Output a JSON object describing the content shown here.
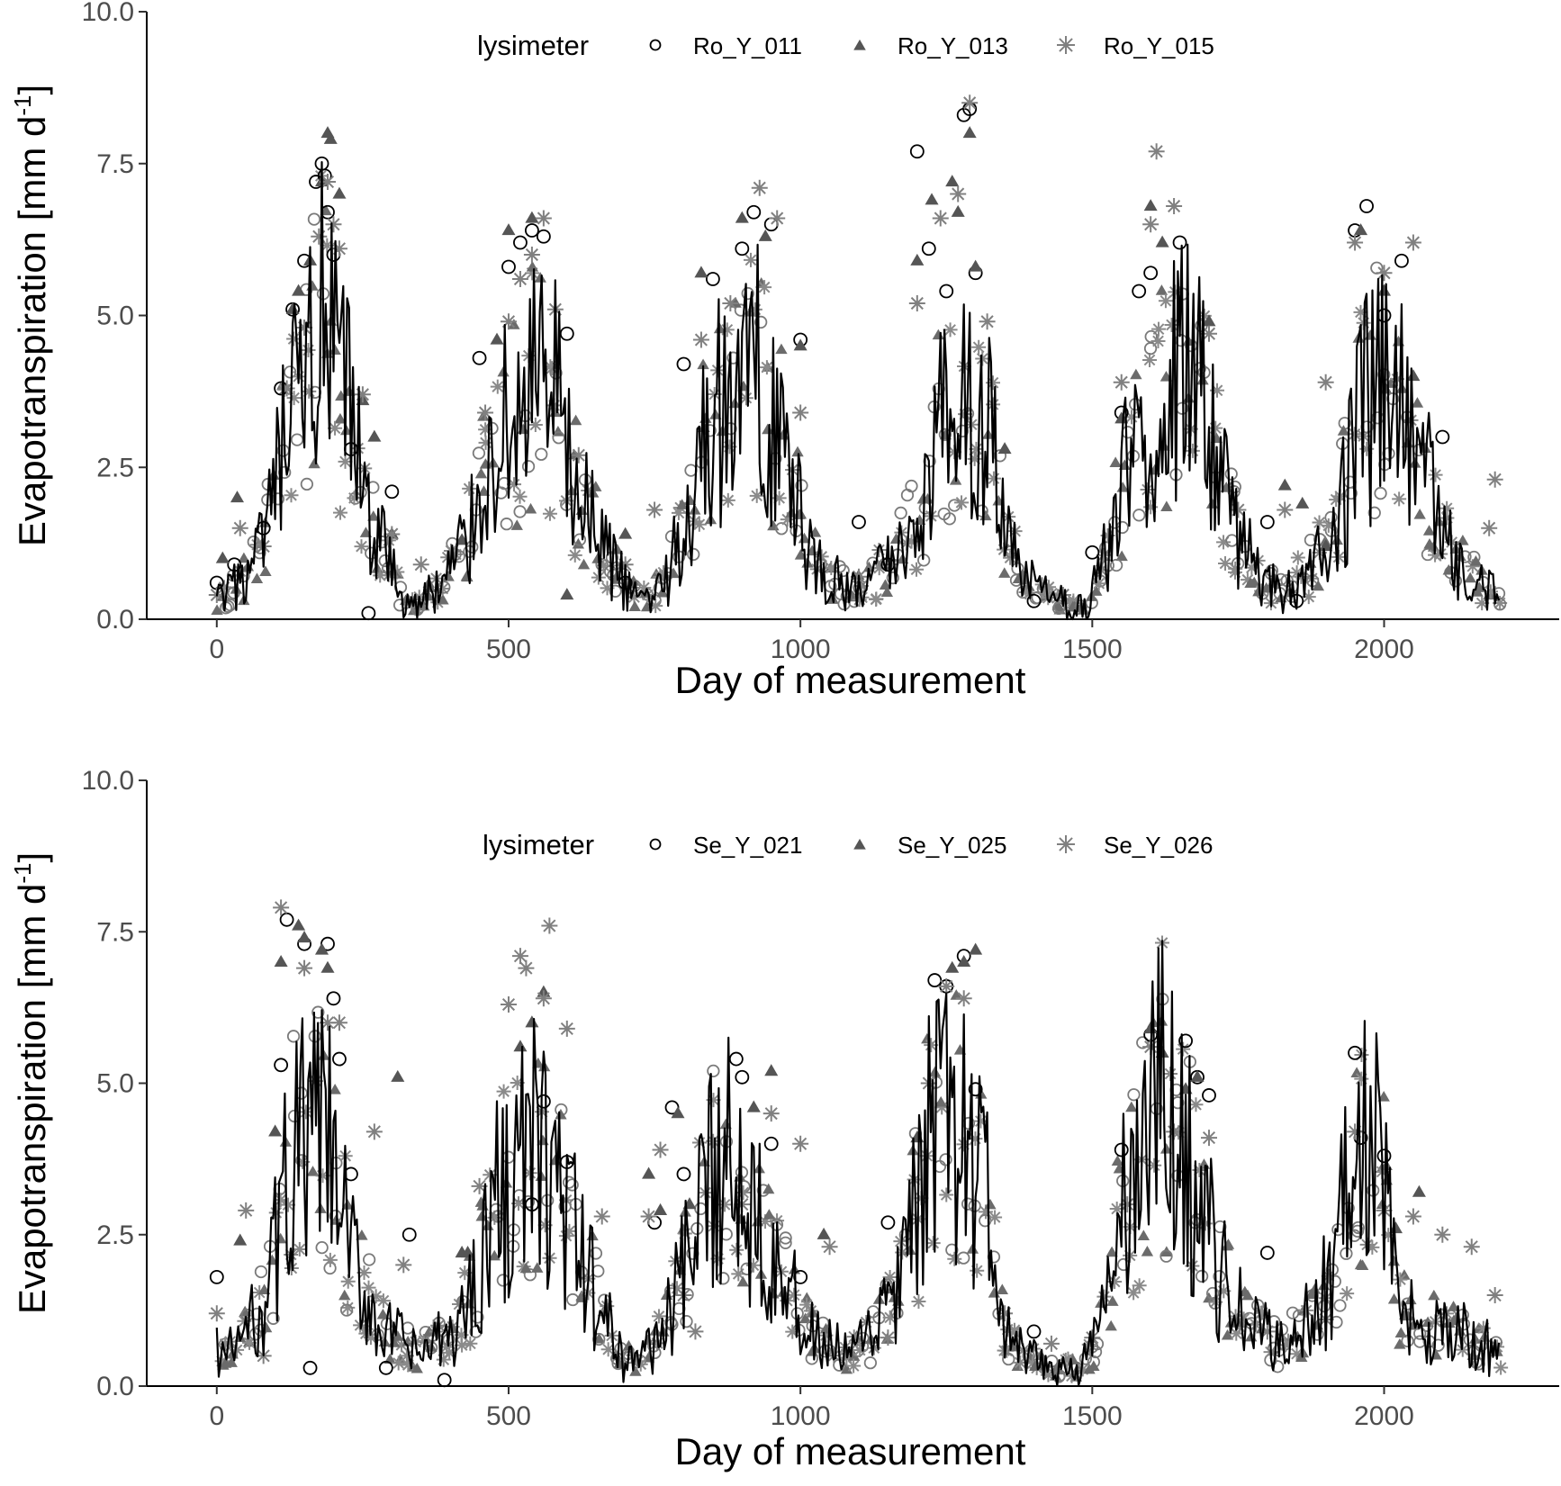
{
  "chart_data": [
    {
      "type": "scatter",
      "panel": "top",
      "xlabel": "Day of measurement",
      "ylabel": "Evapotranspiration [mm d",
      "ylabel_superscript": "-1",
      "ylabel_suffix": "]",
      "xlim": [
        -120,
        2300
      ],
      "ylim": [
        0,
        10
      ],
      "x_ticks": [
        0,
        500,
        1000,
        1500,
        2000
      ],
      "y_ticks": [
        0,
        2.5,
        5,
        7.5,
        10
      ],
      "x_tick_labels": [
        "0",
        "500",
        "1000",
        "1500",
        "2000"
      ],
      "y_tick_labels": [
        "0.0",
        "2.5",
        "5.0",
        "7.5",
        "10.0"
      ],
      "grid": false,
      "legend": {
        "placement": "top-center",
        "title": "lysimeter",
        "entries": [
          {
            "label": "Ro_Y_011",
            "marker": "circle-open",
            "color": "#000000"
          },
          {
            "label": "Ro_Y_013",
            "marker": "triangle",
            "color": "#555555"
          },
          {
            "label": "Ro_Y_015",
            "marker": "asterisk",
            "color": "#808080"
          }
        ]
      },
      "series": [
        {
          "name": "Ro_Y_011",
          "marker": "circle-open",
          "color": "#000000",
          "x": [
            0,
            30,
            80,
            110,
            130,
            150,
            170,
            180,
            185,
            190,
            200,
            230,
            260,
            300,
            450,
            500,
            520,
            540,
            560,
            600,
            700,
            800,
            850,
            900,
            920,
            950,
            1000,
            1100,
            1150,
            1200,
            1220,
            1250,
            1280,
            1290,
            1300,
            1400,
            1500,
            1550,
            1580,
            1600,
            1650,
            1800,
            1850,
            1950,
            1970,
            2000,
            2030,
            2100
          ],
          "y": [
            0.6,
            0.9,
            1.5,
            3.8,
            5.1,
            5.9,
            7.2,
            7.5,
            7.3,
            6.7,
            6.0,
            2.8,
            0.1,
            2.1,
            4.3,
            5.8,
            6.2,
            6.4,
            6.3,
            4.7,
            0.6,
            4.2,
            5.6,
            6.1,
            6.7,
            6.5,
            4.6,
            1.6,
            0.9,
            7.7,
            6.1,
            5.4,
            8.3,
            8.4,
            5.7,
            0.3,
            1.1,
            3.4,
            5.4,
            5.7,
            6.2,
            1.6,
            0.3,
            6.4,
            6.8,
            5.0,
            5.9,
            3.0
          ]
        },
        {
          "name": "Ro_Y_013",
          "marker": "triangle",
          "color": "#555555",
          "x": [
            10,
            35,
            130,
            140,
            160,
            180,
            190,
            195,
            210,
            250,
            270,
            300,
            420,
            480,
            500,
            540,
            600,
            700,
            830,
            900,
            940,
            1000,
            1200,
            1225,
            1260,
            1270,
            1290,
            1300,
            1350,
            1550,
            1600,
            1620,
            1700,
            1830,
            1860,
            1900,
            1960,
            2000,
            2050
          ],
          "y": [
            1.0,
            2.0,
            5.1,
            5.4,
            5.9,
            7.2,
            8.0,
            7.9,
            7.0,
            3.6,
            3.0,
            1.4,
            1.3,
            4.6,
            6.4,
            6.6,
            0.4,
            1.4,
            5.7,
            6.6,
            6.3,
            4.5,
            5.9,
            6.9,
            7.2,
            6.7,
            8.0,
            5.8,
            2.8,
            3.3,
            6.8,
            6.2,
            4.9,
            2.2,
            1.9,
            1.2,
            6.4,
            5.4,
            4.0
          ]
        },
        {
          "name": "Ro_Y_015",
          "marker": "asterisk",
          "color": "#808080",
          "x": [
            0,
            40,
            80,
            120,
            150,
            175,
            190,
            200,
            210,
            250,
            300,
            350,
            460,
            500,
            520,
            540,
            560,
            580,
            620,
            700,
            750,
            830,
            880,
            930,
            960,
            1000,
            1100,
            1200,
            1240,
            1270,
            1290,
            1320,
            1450,
            1550,
            1600,
            1610,
            1640,
            1700,
            1750,
            1830,
            1900,
            1950,
            2000,
            2050,
            2180,
            2190
          ],
          "y": [
            0.4,
            1.5,
            1.2,
            3.8,
            4.8,
            6.3,
            7.2,
            6.5,
            6.1,
            3.7,
            1.4,
            0.9,
            3.4,
            4.9,
            5.6,
            6.0,
            6.6,
            5.1,
            2.7,
            0.9,
            1.8,
            4.6,
            5.2,
            7.1,
            6.6,
            3.4,
            0.7,
            5.2,
            6.6,
            7.0,
            8.5,
            4.9,
            0.4,
            3.9,
            6.5,
            7.7,
            6.8,
            4.7,
            1.8,
            1.8,
            3.9,
            6.2,
            5.7,
            6.2,
            1.5,
            2.3
          ]
        }
      ],
      "line": {
        "name": "",
        "color": "#000000",
        "x": [
          0,
          20,
          40,
          60,
          80,
          100,
          120,
          140,
          160,
          180,
          200,
          220,
          240,
          260,
          280,
          300,
          320,
          340,
          360,
          380,
          400,
          420,
          440,
          460,
          480,
          500,
          520,
          540,
          560,
          580,
          600,
          620,
          640,
          660,
          680,
          700,
          720,
          740,
          760,
          780,
          800,
          820,
          840,
          860,
          880,
          900,
          920,
          940,
          960,
          980,
          1000,
          1020,
          1040,
          1060,
          1080,
          1100,
          1120,
          1140,
          1160,
          1180,
          1200,
          1220,
          1240,
          1260,
          1280,
          1300,
          1320,
          1340,
          1360,
          1380,
          1400,
          1420,
          1440,
          1460,
          1480,
          1500,
          1520,
          1540,
          1560,
          1580,
          1600,
          1620,
          1640,
          1660,
          1680,
          1700,
          1720,
          1740,
          1760,
          1780,
          1800,
          1820,
          1840,
          1860,
          1880,
          1900,
          1920,
          1940,
          1960,
          1980,
          2000,
          2020,
          2040,
          2060,
          2080,
          2100,
          2120,
          2140,
          2160,
          2180,
          2200
        ],
        "y": [
          0.3,
          0.4,
          0.6,
          0.8,
          1.2,
          2.0,
          3.0,
          3.4,
          4.3,
          4.8,
          4.0,
          3.8,
          2.6,
          1.7,
          1.3,
          0.8,
          0.3,
          0.2,
          0.4,
          0.5,
          0.8,
          1.2,
          1.6,
          2.4,
          2.9,
          3.2,
          3.5,
          3.9,
          3.7,
          3.6,
          2.5,
          2.0,
          1.6,
          1.2,
          0.9,
          0.5,
          0.4,
          0.3,
          0.6,
          0.9,
          1.5,
          2.4,
          3.0,
          3.4,
          3.6,
          3.8,
          4.0,
          3.8,
          3.2,
          2.4,
          1.6,
          1.0,
          0.7,
          0.6,
          0.5,
          0.5,
          0.6,
          0.8,
          1.0,
          1.3,
          1.7,
          2.4,
          3.2,
          3.6,
          3.9,
          3.3,
          3.4,
          2.0,
          1.1,
          0.7,
          0.5,
          0.4,
          0.3,
          0.2,
          0.2,
          0.4,
          1.0,
          1.7,
          2.4,
          3.0,
          3.4,
          3.7,
          3.9,
          4.1,
          3.8,
          3.3,
          2.1,
          1.6,
          1.2,
          0.8,
          0.6,
          0.5,
          0.6,
          0.7,
          0.9,
          1.3,
          1.8,
          2.4,
          3.3,
          3.7,
          3.8,
          3.5,
          3.1,
          2.6,
          2.0,
          1.3,
          1.0,
          0.8,
          0.6,
          0.5,
          0.3
        ]
      }
    },
    {
      "type": "scatter",
      "panel": "bottom",
      "xlabel": "Day of measurement",
      "ylabel": "Evapotranspiration [mm d",
      "ylabel_superscript": "-1",
      "ylabel_suffix": "]",
      "xlim": [
        -120,
        2300
      ],
      "ylim": [
        0,
        10
      ],
      "x_ticks": [
        0,
        500,
        1000,
        1500,
        2000
      ],
      "y_ticks": [
        0,
        2.5,
        5,
        7.5,
        10
      ],
      "x_tick_labels": [
        "0",
        "500",
        "1000",
        "1500",
        "2000"
      ],
      "y_tick_labels": [
        "0.0",
        "2.5",
        "5.0",
        "7.5",
        "10.0"
      ],
      "grid": false,
      "legend": {
        "placement": "top-center",
        "title": "lysimeter",
        "entries": [
          {
            "label": "Se_Y_021",
            "marker": "circle-open",
            "color": "#000000"
          },
          {
            "label": "Se_Y_025",
            "marker": "triangle",
            "color": "#555555"
          },
          {
            "label": "Se_Y_026",
            "marker": "asterisk",
            "color": "#808080"
          }
        ]
      },
      "series": [
        {
          "name": "Se_Y_021",
          "marker": "circle-open",
          "color": "#000000",
          "x": [
            0,
            110,
            120,
            150,
            160,
            190,
            200,
            210,
            230,
            290,
            330,
            390,
            540,
            560,
            600,
            750,
            780,
            800,
            890,
            900,
            950,
            1000,
            1150,
            1230,
            1250,
            1280,
            1300,
            1400,
            1550,
            1600,
            1660,
            1680,
            1700,
            1800,
            1950,
            1960,
            2000
          ],
          "y": [
            1.8,
            5.3,
            7.7,
            7.3,
            0.3,
            7.3,
            6.4,
            5.4,
            3.5,
            0.3,
            2.5,
            0.1,
            3.0,
            4.7,
            3.7,
            2.7,
            4.6,
            3.5,
            5.4,
            5.1,
            4.0,
            1.8,
            2.7,
            6.7,
            6.6,
            7.1,
            4.9,
            0.9,
            3.9,
            5.8,
            5.7,
            5.1,
            4.8,
            2.2,
            5.5,
            4.1,
            3.8
          ]
        },
        {
          "name": "Se_Y_025",
          "marker": "triangle",
          "color": "#555555",
          "x": [
            40,
            100,
            110,
            140,
            150,
            180,
            190,
            310,
            420,
            430,
            520,
            540,
            560,
            740,
            760,
            790,
            810,
            920,
            950,
            1040,
            1200,
            1260,
            1280,
            1300,
            1600,
            1620,
            1660,
            1680,
            2020,
            2060
          ],
          "y": [
            2.4,
            4.2,
            7.0,
            7.6,
            7.4,
            7.2,
            6.9,
            5.1,
            2.2,
            2.2,
            5.6,
            6.0,
            6.5,
            3.5,
            2.9,
            4.5,
            3.0,
            4.6,
            5.2,
            2.5,
            4.1,
            6.9,
            7.0,
            7.2,
            5.9,
            5.5,
            4.9,
            5.1,
            2.6,
            3.2
          ]
        },
        {
          "name": "Se_Y_026",
          "marker": "asterisk",
          "color": "#808080",
          "x": [
            0,
            50,
            80,
            110,
            150,
            190,
            210,
            270,
            320,
            380,
            450,
            500,
            520,
            530,
            560,
            570,
            600,
            660,
            740,
            760,
            800,
            820,
            900,
            950,
            1000,
            1050,
            1150,
            1220,
            1250,
            1280,
            1350,
            1430,
            1500,
            1560,
            1600,
            1640,
            1700,
            1800,
            1900,
            1950,
            2000,
            2050,
            2100,
            2150,
            2190
          ],
          "y": [
            1.2,
            2.9,
            0.5,
            7.9,
            6.9,
            6.0,
            6.0,
            4.2,
            2.0,
            1.0,
            3.3,
            6.3,
            7.1,
            6.9,
            6.4,
            7.6,
            5.9,
            2.8,
            2.8,
            3.9,
            1.5,
            0.9,
            3.0,
            4.5,
            4.0,
            2.3,
            0.8,
            5.0,
            6.6,
            6.4,
            1.2,
            0.7,
            0.8,
            3.0,
            5.6,
            4.2,
            4.1,
            0.9,
            1.1,
            4.2,
            2.9,
            2.8,
            2.5,
            2.3,
            1.5
          ]
        }
      ],
      "line": {
        "name": "",
        "color": "#000000",
        "x": [
          0,
          20,
          40,
          60,
          80,
          100,
          120,
          140,
          160,
          180,
          200,
          220,
          240,
          260,
          280,
          300,
          320,
          340,
          360,
          380,
          400,
          420,
          440,
          460,
          480,
          500,
          520,
          540,
          560,
          580,
          600,
          620,
          640,
          660,
          680,
          700,
          720,
          740,
          760,
          780,
          800,
          820,
          840,
          860,
          880,
          900,
          920,
          940,
          960,
          980,
          1000,
          1020,
          1040,
          1060,
          1080,
          1100,
          1120,
          1140,
          1160,
          1180,
          1200,
          1220,
          1240,
          1260,
          1280,
          1300,
          1320,
          1340,
          1360,
          1380,
          1400,
          1420,
          1440,
          1460,
          1480,
          1500,
          1520,
          1540,
          1560,
          1580,
          1600,
          1620,
          1640,
          1660,
          1680,
          1700,
          1720,
          1740,
          1760,
          1780,
          1800,
          1820,
          1840,
          1860,
          1880,
          1900,
          1920,
          1940,
          1960,
          1980,
          2000,
          2020,
          2040,
          2060,
          2080,
          2100,
          2120,
          2140,
          2160,
          2180,
          2200
        ],
        "y": [
          0.6,
          0.5,
          0.8,
          1.0,
          1.4,
          2.2,
          3.4,
          4.0,
          3.8,
          4.4,
          3.4,
          2.6,
          1.8,
          1.4,
          1.0,
          0.8,
          0.7,
          0.5,
          0.6,
          0.7,
          0.8,
          1.1,
          1.7,
          2.4,
          3.0,
          3.4,
          3.6,
          3.9,
          3.6,
          3.5,
          2.8,
          2.2,
          1.7,
          1.2,
          0.8,
          0.4,
          0.5,
          0.6,
          0.9,
          1.3,
          1.8,
          2.4,
          3.0,
          4.0,
          3.7,
          3.3,
          3.1,
          2.8,
          2.4,
          1.6,
          1.1,
          0.8,
          0.7,
          0.6,
          0.5,
          0.6,
          0.8,
          1.2,
          1.4,
          1.9,
          2.9,
          4.0,
          4.3,
          4.2,
          4.3,
          3.3,
          3.3,
          1.2,
          0.7,
          0.5,
          0.4,
          0.3,
          0.3,
          0.3,
          0.3,
          0.6,
          1.3,
          2.3,
          3.1,
          3.6,
          4.4,
          4.8,
          4.3,
          3.8,
          3.0,
          2.5,
          1.8,
          1.4,
          1.1,
          0.9,
          0.8,
          0.7,
          0.8,
          1.0,
          1.2,
          1.6,
          2.4,
          3.3,
          4.0,
          4.2,
          3.5,
          1.4,
          1.2,
          1.1,
          1.0,
          1.0,
          0.9,
          0.8,
          0.7,
          0.6,
          0.4
        ]
      }
    }
  ]
}
